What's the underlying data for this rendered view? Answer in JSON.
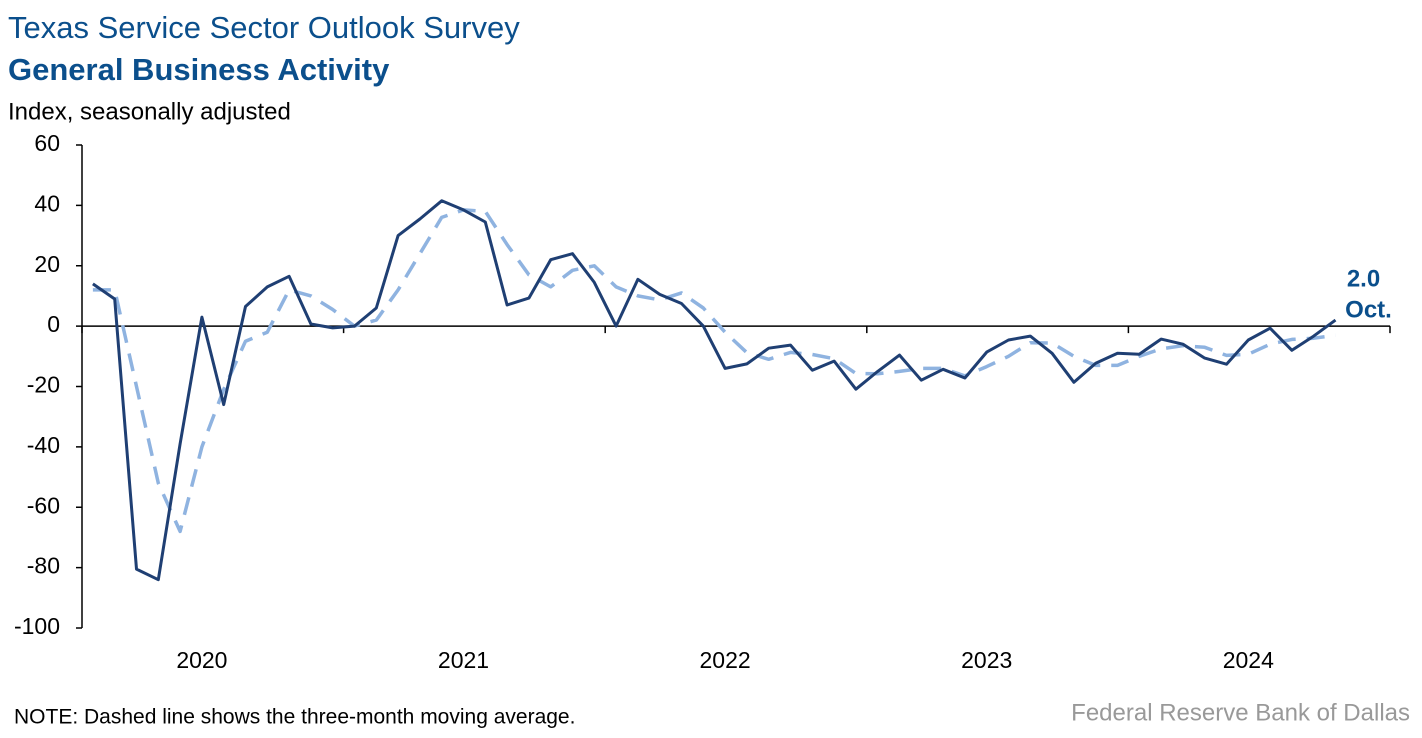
{
  "chart_data": {
    "type": "line",
    "title": "Texas Service Sector Outlook Survey",
    "subtitle": "General Business Activity",
    "y_label": "Index, seasonally adjusted",
    "note": "NOTE: Dashed line shows the three-month moving average.",
    "source": "Federal Reserve Bank of Dallas",
    "categories": [
      null,
      null,
      null,
      null,
      null,
      "2020",
      null,
      null,
      null,
      null,
      null,
      null,
      null,
      null,
      null,
      null,
      null,
      "2021",
      null,
      null,
      null,
      null,
      null,
      null,
      null,
      null,
      null,
      null,
      null,
      "2022",
      null,
      null,
      null,
      null,
      null,
      null,
      null,
      null,
      null,
      null,
      null,
      "2023",
      null,
      null,
      null,
      null,
      null,
      null,
      null,
      null,
      null,
      null,
      null,
      "2024",
      null,
      null,
      null,
      null
    ],
    "series": [
      {
        "color": "#1f3f73",
        "dashed": false,
        "values": [
          14,
          9,
          -80.5,
          -84,
          -39,
          3,
          -26,
          6.5,
          13,
          16.5,
          0.7,
          -0.6,
          0,
          6,
          30,
          35.5,
          41.5,
          38.5,
          34.5,
          7,
          9.3,
          22,
          24,
          14.5,
          0,
          15.5,
          10.5,
          7.5,
          0,
          -14,
          -12.5,
          -7.3,
          -6.3,
          -14.6,
          -11.6,
          -20.9,
          -15,
          -9.6,
          -17.9,
          -14.3,
          -17.2,
          -8.6,
          -4.6,
          -3.3,
          -9,
          -18.6,
          -12.3,
          -9,
          -9.3,
          -4.3,
          -6,
          -10.6,
          -12.6,
          -4.6,
          -0.7,
          -8,
          -3.3,
          2.0
        ]
      },
      {
        "color": "#8fb3e0",
        "dashed": true,
        "values": [
          12,
          12,
          -20,
          -52,
          -68,
          -40,
          -21,
          -5,
          -2,
          12,
          10,
          5.5,
          0,
          2,
          12,
          24,
          36,
          38.5,
          38,
          27,
          17,
          13,
          18.5,
          20,
          13,
          10,
          8.7,
          11,
          6,
          -2,
          -8.8,
          -11,
          -8.7,
          -9.4,
          -10.8,
          -15.7,
          -15.8,
          -15,
          -14,
          -14,
          -16.5,
          -13.4,
          -10,
          -5.5,
          -5.6,
          -10,
          -13,
          -13,
          -10,
          -7.5,
          -6.5,
          -7,
          -9.7,
          -9.3,
          -6,
          -4.4,
          -4,
          -3
        ]
      }
    ],
    "annotation": {
      "label": "2.0",
      "month": "Oct."
    },
    "ylim": [
      -100,
      60
    ],
    "yticks": [
      -100,
      -80,
      -60,
      -40,
      -20,
      0,
      20,
      40,
      60
    ]
  }
}
